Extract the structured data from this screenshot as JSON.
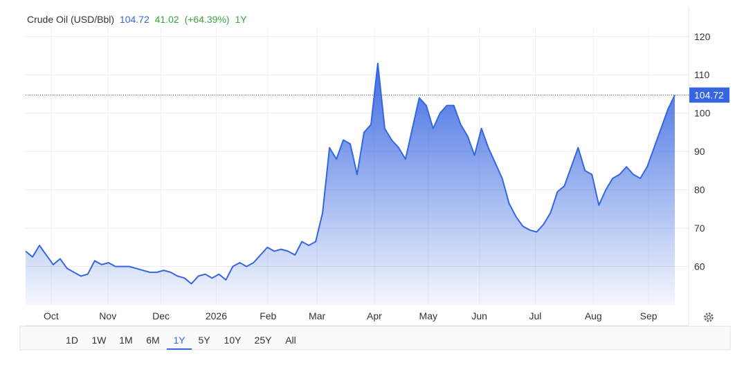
{
  "chart_data": {
    "type": "area",
    "title": "Crude Oil (USD/Bbl)",
    "price": 104.72,
    "change": 41.02,
    "change_label": "(+64.39%)",
    "period": "1Y",
    "color": "#3565e0",
    "x": [
      0,
      1,
      2,
      3,
      4,
      5,
      6,
      7,
      8,
      9,
      10,
      11,
      12,
      13,
      14,
      15,
      16,
      17,
      18,
      19,
      20,
      21,
      22,
      23,
      24,
      25,
      26,
      27,
      28,
      29,
      30,
      31,
      32,
      33,
      34,
      35,
      36,
      37,
      38,
      39,
      40,
      41,
      42,
      43,
      44,
      45,
      46,
      47,
      48,
      49,
      50,
      51,
      52,
      53,
      54,
      55,
      56,
      57,
      58,
      59,
      60,
      61,
      62,
      63,
      64,
      65,
      66,
      67,
      68,
      69,
      70,
      71,
      72,
      73,
      74,
      75,
      76,
      77,
      78,
      79,
      80,
      81,
      82,
      83,
      84,
      85,
      86,
      87,
      88,
      89,
      90,
      91,
      92,
      93,
      94
    ],
    "series": [
      {
        "name": "Crude Oil",
        "color": "#3565e0",
        "values": [
          64,
          62.5,
          65.5,
          63,
          60.5,
          62,
          59.5,
          58.5,
          57.5,
          58,
          61.5,
          60.5,
          61,
          60,
          60,
          60,
          59.5,
          59,
          58.5,
          58.5,
          59,
          58.5,
          57.5,
          57,
          55.5,
          57.5,
          58,
          57,
          58,
          56.5,
          60,
          61,
          60,
          61,
          63,
          65,
          64,
          64.5,
          64,
          63,
          66.5,
          65.5,
          66.5,
          74,
          91,
          88,
          93,
          92,
          84,
          95,
          97,
          113,
          96,
          93,
          91,
          88,
          96,
          104,
          102,
          96,
          100,
          102,
          102,
          97,
          94,
          89,
          96,
          91,
          87,
          83,
          76.5,
          73,
          70.5,
          69.5,
          69,
          71,
          74,
          79.5,
          81,
          86,
          91,
          85,
          84,
          76,
          80,
          83,
          84,
          86,
          84,
          83,
          86,
          91,
          96,
          101,
          104.72
        ]
      }
    ],
    "xlim": [
      0,
      96
    ],
    "xticks": [
      {
        "value": 3.7,
        "label": "Oct"
      },
      {
        "value": 11.9,
        "label": "Nov"
      },
      {
        "value": 19.6,
        "label": "Dec"
      },
      {
        "value": 27.6,
        "label": "2026"
      },
      {
        "value": 35.1,
        "label": "Feb"
      },
      {
        "value": 42.2,
        "label": "Mar"
      },
      {
        "value": 50.5,
        "label": "Apr"
      },
      {
        "value": 58.3,
        "label": "May"
      },
      {
        "value": 65.7,
        "label": "Jun"
      },
      {
        "value": 73.8,
        "label": "Jul"
      },
      {
        "value": 82.2,
        "label": "Aug"
      },
      {
        "value": 90.2,
        "label": "Sep"
      }
    ],
    "ylim": [
      50,
      122.3
    ],
    "yticks": [
      60,
      70,
      80,
      90,
      100,
      110,
      120
    ],
    "grid": true,
    "range_buttons": [
      "1D",
      "1W",
      "1M",
      "6M",
      "1Y",
      "5Y",
      "10Y",
      "25Y",
      "All"
    ],
    "active_range": 4
  }
}
